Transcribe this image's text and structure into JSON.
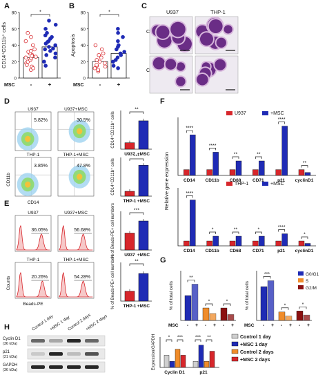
{
  "panel_letters": [
    "A",
    "B",
    "C",
    "D",
    "E",
    "F",
    "G",
    "H"
  ],
  "panel_a": {
    "ylabel": "CD14⁺CD11b⁺ cells",
    "sig": "*",
    "msc_label": "MSC",
    "groups": [
      "-",
      "+"
    ],
    "ticks": [
      "0",
      "20",
      "40",
      "60",
      "80"
    ]
  },
  "panel_b": {
    "ylabel": "Apoptosis",
    "sig": "*",
    "msc_label": "MSC",
    "groups": [
      "-",
      "+"
    ],
    "ticks": [
      "0",
      "20",
      "40",
      "60",
      "80"
    ]
  },
  "panel_c": {
    "cols": [
      "U937",
      "THP-1"
    ],
    "rows": [
      "Control",
      "Co-culture"
    ]
  },
  "panel_d": {
    "flow": [
      {
        "title": "U937",
        "pct": "5.82%"
      },
      {
        "title": "U937+MSC",
        "pct": "30.5%"
      },
      {
        "title": "THP-1",
        "pct": "3.85%"
      },
      {
        "title": "THP-1+MSC",
        "pct": "47.8%"
      }
    ],
    "x_axis": "CD14",
    "y_axis": "CD11b",
    "bar1": {
      "ylabel": "CD14⁺CD11b⁺ cells",
      "sig": "**",
      "cats": [
        "U937",
        "+MSC"
      ]
    },
    "bar2": {
      "ylabel": "CD14⁺CD11b⁺ cells",
      "sig": "***",
      "cats": [
        "THP-1",
        "+MSC"
      ]
    }
  },
  "panel_e": {
    "hist": [
      {
        "title": "U937",
        "pct": "36.05%"
      },
      {
        "title": "U937+MSC",
        "pct": "56.68%"
      },
      {
        "title": "THP-1",
        "pct": "20.26%"
      },
      {
        "title": "THP-1+MSC",
        "pct": "54.28%"
      }
    ],
    "x_axis": "Beads-PE",
    "y_axis": "Counts",
    "bar1": {
      "ylabel": "% of Beads-PE+ cell numbers",
      "sig": "***",
      "cats": [
        "U937",
        "+MSC"
      ]
    },
    "bar2": {
      "ylabel": "% of Beads-PE+ cell numbers",
      "sig": "**",
      "cats": [
        "THP-1",
        "+MSC"
      ]
    }
  },
  "panel_f": {
    "ylabel": "Relative gene expression",
    "genes": [
      "CD14",
      "CD11b",
      "CD68",
      "CD71",
      "p21",
      "cyclinD1"
    ],
    "top": {
      "legend": [
        "U937",
        "+MSC"
      ],
      "sig": [
        "****",
        "****",
        "**",
        "**",
        "****",
        "**"
      ]
    },
    "bottom": {
      "legend": [
        "THP-1",
        "+MSC"
      ],
      "sig": [
        "****",
        "*",
        "**",
        "*",
        "****",
        "*"
      ]
    }
  },
  "panel_g": {
    "ylabel": "% of total cells",
    "msc_label": "MSC",
    "signs": [
      "-",
      "+",
      "-",
      "+",
      "-",
      "+"
    ],
    "legend": [
      "G0/G1",
      "S",
      "G2/M"
    ],
    "left_sig": [
      "**",
      "*",
      "*"
    ],
    "right_sig": [
      "***",
      "*",
      "*"
    ]
  },
  "panel_h": {
    "lanes": [
      "Control 1 day",
      "+MSC 1 day",
      "Control 2 days",
      "+MSC 2 days"
    ],
    "blots": [
      "Cyclin D1\n(36 kDa)",
      "p21\n(21 kDa)",
      "GAPDH\n(36 kDa)"
    ],
    "ylabel": "Expression/GAPDH",
    "groups": [
      "Cyclin D1",
      "p21"
    ],
    "legend": [
      "Control 1 day",
      "+MSC 1 day",
      "Control 2 days",
      "+MSC 2 days"
    ],
    "sig_cyclin": [
      "*",
      "***"
    ],
    "sig_p21": [
      "***",
      "**"
    ]
  },
  "colors": {
    "red": "#d7262b",
    "blue": "#1f2bb5",
    "orange": "#f08c2a",
    "darkred": "#8b1010",
    "grey": "#d8d8d8"
  },
  "chart_data": [
    {
      "panel": "A",
      "type": "scatter",
      "categories": [
        "-",
        "+"
      ],
      "values": [
        25,
        38
      ],
      "ylabel": "CD14⁺CD11b⁺ cells",
      "ylim": [
        0,
        80
      ]
    },
    {
      "panel": "B",
      "type": "scatter",
      "categories": [
        "-",
        "+"
      ],
      "values": [
        20,
        30
      ],
      "ylabel": "Apoptosis",
      "ylim": [
        0,
        80
      ]
    },
    {
      "panel": "D",
      "type": "bar",
      "categories": [
        "U937",
        "+MSC"
      ],
      "values": [
        5,
        22
      ],
      "ylabel": "CD14⁺CD11b⁺ cells"
    },
    {
      "panel": "D",
      "type": "bar",
      "categories": [
        "THP-1",
        "+MSC"
      ],
      "values": [
        5,
        32
      ],
      "ylabel": "CD14⁺CD11b⁺ cells"
    },
    {
      "panel": "E",
      "type": "bar",
      "categories": [
        "U937",
        "+MSC"
      ],
      "values": [
        35,
        60
      ],
      "ylabel": "% of Beads-PE+ cell numbers"
    },
    {
      "panel": "E",
      "type": "bar",
      "categories": [
        "THP-1",
        "+MSC"
      ],
      "values": [
        18,
        50
      ],
      "ylabel": "% of Beads-PE+ cell numbers"
    },
    {
      "panel": "F top",
      "type": "bar",
      "categories": [
        "CD14",
        "CD11b",
        "CD68",
        "CD71",
        "p21",
        "cyclinD1"
      ],
      "series": [
        {
          "name": "U937",
          "values": [
            1,
            1,
            1,
            1,
            1,
            1
          ]
        },
        {
          "name": "+MSC",
          "values": [
            7,
            4,
            2.5,
            2.5,
            8.5,
            0.5
          ]
        }
      ],
      "ylabel": "Relative gene expression"
    },
    {
      "panel": "F bottom",
      "type": "bar",
      "categories": [
        "CD14",
        "CD11b",
        "CD68",
        "CD71",
        "p21",
        "cyclinD1"
      ],
      "series": [
        {
          "name": "THP-1",
          "values": [
            1,
            1,
            1,
            1,
            1,
            1
          ]
        },
        {
          "name": "+MSC",
          "values": [
            9.5,
            2,
            2,
            2,
            2.5,
            0.5
          ]
        }
      ],
      "ylabel": "Relative gene expression"
    },
    {
      "panel": "G left",
      "type": "bar",
      "categories": [
        "G0/G1",
        "S",
        "G2/M"
      ],
      "series": [
        {
          "name": "-",
          "values": [
            50,
            25,
            25
          ]
        },
        {
          "name": "+",
          "values": [
            73,
            14,
            12
          ]
        }
      ],
      "ylabel": "% of total cells"
    },
    {
      "panel": "G right",
      "type": "bar",
      "categories": [
        "G0/G1",
        "S",
        "G2/M"
      ],
      "series": [
        {
          "name": "-",
          "values": [
            68,
            17,
            19
          ]
        },
        {
          "name": "+",
          "values": [
            80,
            9,
            11
          ]
        }
      ],
      "ylabel": "% of total cells"
    },
    {
      "panel": "H",
      "type": "bar",
      "categories": [
        "Cyclin D1",
        "p21"
      ],
      "series": [
        {
          "name": "Control 1 day",
          "values": [
            0.6,
            0.3
          ]
        },
        {
          "name": "+MSC 1 day",
          "values": [
            0.3,
            1.1
          ]
        },
        {
          "name": "Control 2 days",
          "values": [
            0.9,
            0.3
          ]
        },
        {
          "name": "+MSC 2 days",
          "values": [
            0.6,
            0.8
          ]
        }
      ],
      "ylabel": "Expression/GAPDH"
    }
  ]
}
